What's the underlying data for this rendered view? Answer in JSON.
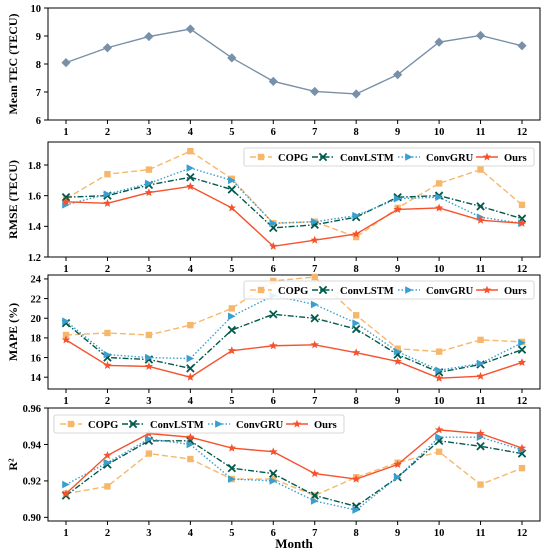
{
  "chart_data": [
    {
      "type": "line",
      "ylabel": "Mean TEC (TECU)",
      "categories": [
        "1",
        "2",
        "3",
        "4",
        "5",
        "6",
        "7",
        "8",
        "9",
        "10",
        "11",
        "12"
      ],
      "ylim": [
        6,
        10
      ],
      "yticks": [
        "6",
        "7",
        "8",
        "9",
        "10"
      ],
      "grid": false,
      "legend": "none",
      "series": [
        {
          "values": [
            8.05,
            8.58,
            8.98,
            9.25,
            8.22,
            7.38,
            7.02,
            6.93,
            7.62,
            8.78,
            9.02,
            8.65
          ],
          "color": "#7890a8",
          "marker": "diamond",
          "dash": "solid"
        }
      ]
    },
    {
      "type": "line",
      "ylabel": "RMSE (TECU)",
      "categories": [
        "1",
        "2",
        "3",
        "4",
        "5",
        "6",
        "7",
        "8",
        "9",
        "10",
        "11",
        "12"
      ],
      "ylim": [
        1.2,
        1.95
      ],
      "yticks": [
        "1.2",
        "1.4",
        "1.6",
        "1.8"
      ],
      "grid": false,
      "legend": "top-right",
      "series": [
        {
          "name": "COPG",
          "values": [
            1.58,
            1.74,
            1.77,
            1.89,
            1.71,
            1.42,
            1.43,
            1.33,
            1.52,
            1.68,
            1.77,
            1.54
          ],
          "color": "#f7b76b",
          "marker": "square",
          "dash": "dashed"
        },
        {
          "name": "ConvLSTM",
          "values": [
            1.59,
            1.6,
            1.67,
            1.72,
            1.64,
            1.39,
            1.41,
            1.46,
            1.59,
            1.6,
            1.53,
            1.45
          ],
          "color": "#005a4b",
          "marker": "x",
          "dash": "dashdot"
        },
        {
          "name": "ConvGRU",
          "values": [
            1.54,
            1.61,
            1.68,
            1.78,
            1.7,
            1.42,
            1.43,
            1.47,
            1.58,
            1.59,
            1.46,
            1.42
          ],
          "color": "#3a9fcf",
          "marker": "triangle-right",
          "dash": "dotted"
        },
        {
          "name": "Ours",
          "values": [
            1.56,
            1.55,
            1.62,
            1.66,
            1.52,
            1.27,
            1.31,
            1.35,
            1.51,
            1.52,
            1.44,
            1.42
          ],
          "color": "#f5522d",
          "marker": "star",
          "dash": "solid"
        }
      ]
    },
    {
      "type": "line",
      "ylabel": "MAPE (%)",
      "categories": [
        "1",
        "2",
        "3",
        "4",
        "5",
        "6",
        "7",
        "8",
        "9",
        "10",
        "11",
        "12"
      ],
      "ylim": [
        12.8,
        24.4
      ],
      "yticks": [
        "14",
        "16",
        "18",
        "20",
        "22",
        "24"
      ],
      "grid": false,
      "legend": "top-right",
      "series": [
        {
          "name": "COPG",
          "values": [
            18.3,
            18.5,
            18.3,
            19.3,
            21.0,
            23.8,
            24.2,
            20.3,
            16.9,
            16.6,
            17.8,
            17.6
          ],
          "color": "#f7b76b",
          "marker": "square",
          "dash": "dashed"
        },
        {
          "name": "ConvLSTM",
          "values": [
            19.5,
            16.0,
            15.8,
            14.9,
            18.8,
            20.4,
            20.0,
            18.9,
            16.3,
            14.5,
            15.3,
            16.8
          ],
          "color": "#005a4b",
          "marker": "x",
          "dash": "dashdot"
        },
        {
          "name": "ConvGRU",
          "values": [
            19.7,
            16.3,
            16.0,
            15.9,
            20.2,
            22.3,
            21.4,
            19.5,
            16.6,
            14.7,
            15.4,
            17.5
          ],
          "color": "#3a9fcf",
          "marker": "triangle-right",
          "dash": "dotted"
        },
        {
          "name": "Ours",
          "values": [
            17.8,
            15.2,
            15.1,
            14.0,
            16.7,
            17.2,
            17.3,
            16.5,
            15.6,
            13.9,
            14.1,
            15.5
          ],
          "color": "#f5522d",
          "marker": "star",
          "dash": "solid"
        }
      ]
    },
    {
      "type": "line",
      "ylabel": "R²",
      "xlabel": "Month",
      "categories": [
        "1",
        "2",
        "3",
        "4",
        "5",
        "6",
        "7",
        "8",
        "9",
        "10",
        "11",
        "12"
      ],
      "ylim": [
        0.898,
        0.96
      ],
      "yticks": [
        "0.90",
        "0.92",
        "0.94",
        "0.96"
      ],
      "grid": false,
      "legend": "top-left",
      "series": [
        {
          "name": "COPG",
          "values": [
            0.913,
            0.917,
            0.935,
            0.932,
            0.921,
            0.921,
            0.912,
            0.922,
            0.93,
            0.936,
            0.918,
            0.927
          ],
          "color": "#f7b76b",
          "marker": "square",
          "dash": "dashed"
        },
        {
          "name": "ConvLSTM",
          "values": [
            0.912,
            0.929,
            0.942,
            0.942,
            0.927,
            0.924,
            0.912,
            0.906,
            0.922,
            0.942,
            0.939,
            0.935
          ],
          "color": "#005a4b",
          "marker": "x",
          "dash": "dashdot"
        },
        {
          "name": "ConvGRU",
          "values": [
            0.918,
            0.93,
            0.943,
            0.94,
            0.921,
            0.92,
            0.909,
            0.904,
            0.922,
            0.944,
            0.944,
            0.937
          ],
          "color": "#3a9fcf",
          "marker": "triangle-right",
          "dash": "dotted"
        },
        {
          "name": "Ours",
          "values": [
            0.913,
            0.934,
            0.946,
            0.944,
            0.938,
            0.936,
            0.924,
            0.921,
            0.929,
            0.948,
            0.946,
            0.938
          ],
          "color": "#f5522d",
          "marker": "star",
          "dash": "solid"
        }
      ]
    }
  ]
}
